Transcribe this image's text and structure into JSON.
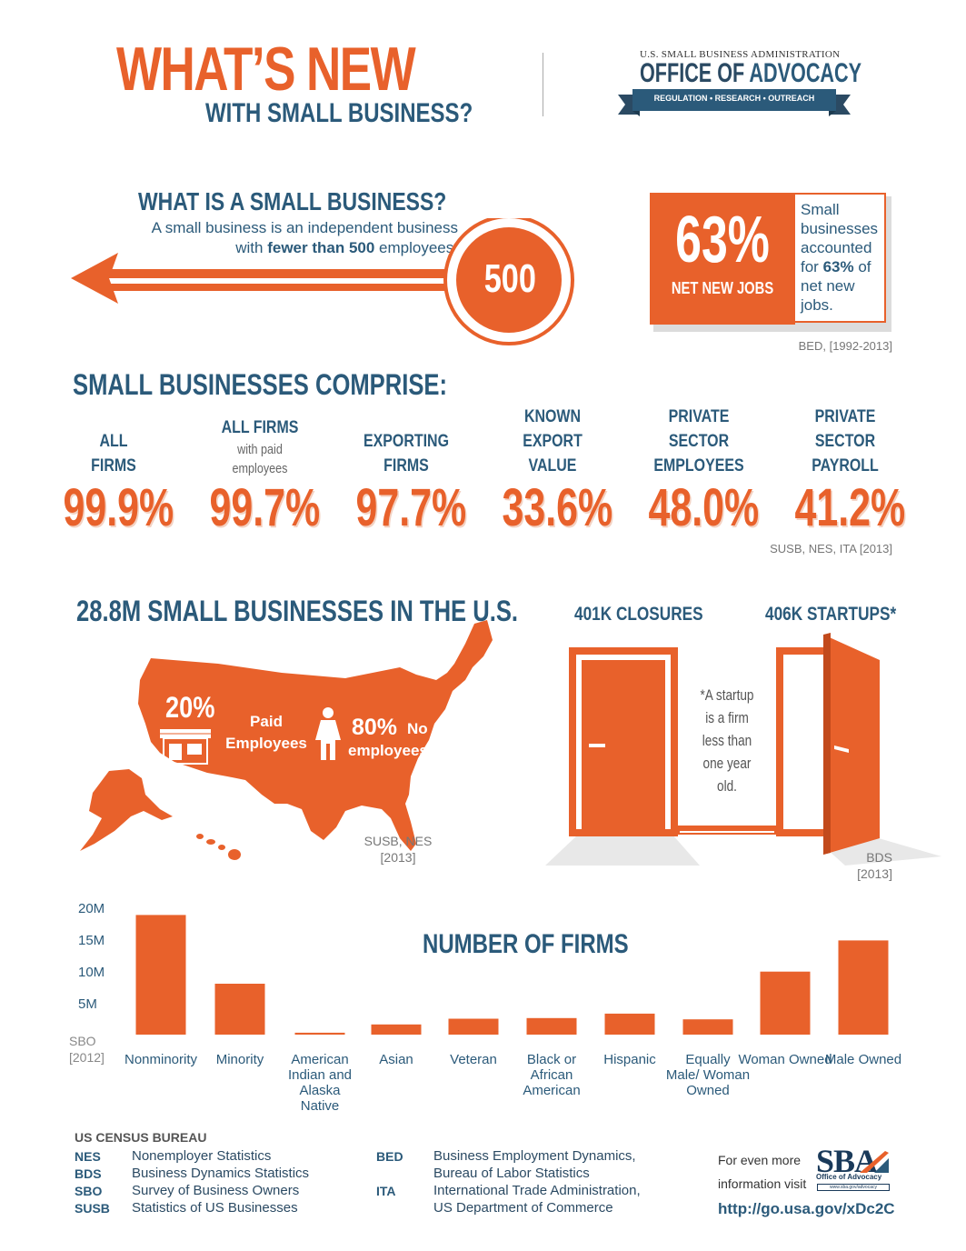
{
  "header": {
    "title_main": "WHAT’S NEW",
    "title_sub": "WITH SMALL BUSINESS?",
    "logo_top": "U.S. SMALL BUSINESS ADMINISTRATION",
    "logo_office": "OFFICE OF",
    "logo_advocacy": "ADVOCACY",
    "logo_ribbon": "REGULATION  •  RESEARCH  •  OUTREACH"
  },
  "small_business": {
    "heading": "WHAT IS A SMALL BUSINESS?",
    "desc_line1": "A small business is an independent business",
    "desc_pre": "with ",
    "desc_bold": "fewer than 500",
    "desc_post": " employees.",
    "badge": "500"
  },
  "jobs": {
    "pct": "63%",
    "label": "NET NEW JOBS",
    "text_pre": "Small businesses accounted for ",
    "text_bold": "63%",
    "text_post": " of net new jobs.",
    "source": "BED, [1992-2013]"
  },
  "comprise": {
    "heading": "SMALL BUSINESSES COMPRISE:",
    "stats": [
      {
        "label_lines": [
          "ALL",
          "FIRMS"
        ],
        "sub": "",
        "value": "99.9%"
      },
      {
        "label_lines": [
          "ALL FIRMS"
        ],
        "sub": "with paid employees",
        "value": "99.7%"
      },
      {
        "label_lines": [
          "EXPORTING",
          "FIRMS"
        ],
        "sub": "",
        "value": "97.7%"
      },
      {
        "label_lines": [
          "KNOWN EXPORT",
          "VALUE"
        ],
        "sub": "",
        "value": "33.6%"
      },
      {
        "label_lines": [
          "PRIVATE",
          "SECTOR",
          "EMPLOYEES"
        ],
        "sub": "",
        "value": "48.0%"
      },
      {
        "label_lines": [
          "PRIVATE",
          "SECTOR",
          "PAYROLL"
        ],
        "sub": "",
        "value": "41.2%"
      }
    ],
    "source": "SUSB, NES, ITA [2013]"
  },
  "map": {
    "heading_num": "28.8M",
    "heading_text": " SMALL BUSINESSES IN THE U.S.",
    "pct1": "20%",
    "txt1": "Paid Employees",
    "pct2": "80%",
    "txt2": "No",
    "txt3": "employees",
    "source_line1": "SUSB, NES",
    "source_line2": "[2013]"
  },
  "doors": {
    "closures": "401K CLOSURES",
    "startups": "406K STARTUPS*",
    "note": "*A startup is a firm less than one year old.",
    "source_line1": "BDS",
    "source_line2": "[2013]"
  },
  "chart_data": {
    "type": "bar",
    "title": "NUMBER OF FIRMS",
    "categories": [
      "Nonminority",
      "Minority",
      "American Indian and Alaska Native",
      "Asian",
      "Veteran",
      "Black or African American",
      "Hispanic",
      "Equally Male/ Woman Owned",
      "Woman Owned",
      "Male Owned"
    ],
    "values": [
      18.8,
      8.0,
      0.3,
      1.6,
      2.5,
      2.6,
      3.3,
      2.4,
      9.9,
      14.8
    ],
    "unit": "M",
    "yticks": [
      "20M",
      "15M",
      "10M",
      "5M"
    ],
    "ytick_values": [
      20,
      15,
      10,
      5
    ],
    "ylim": [
      0,
      20
    ],
    "bar_color": "#e8612b",
    "source_line1": "SBO",
    "source_line2": "[2012]"
  },
  "footer": {
    "census_heading": "US CENSUS BUREAU",
    "left": [
      {
        "key": "NES",
        "val": "Nonemployer Statistics"
      },
      {
        "key": "BDS",
        "val": "Business Dynamics Statistics"
      },
      {
        "key": "SBO",
        "val": "Survey of Business Owners"
      },
      {
        "key": "SUSB",
        "val": "Statistics of US Businesses"
      }
    ],
    "right": [
      {
        "key": "BED",
        "val1": "Business Employment Dynamics,",
        "val2": "Bureau of Labor Statistics"
      },
      {
        "key": "ITA",
        "val1": "International Trade Administration,",
        "val2": "US Department of Commerce"
      }
    ],
    "more_info": "For even more information visit",
    "sba_logo": "SBA",
    "sba_sub": "Office of Advocacy",
    "sba_url": "www.sba.gov/advocacy",
    "link": "http://go.usa.gov/xDc2C"
  },
  "colors": {
    "orange": "#e8612b",
    "navy": "#2b5a7a"
  }
}
